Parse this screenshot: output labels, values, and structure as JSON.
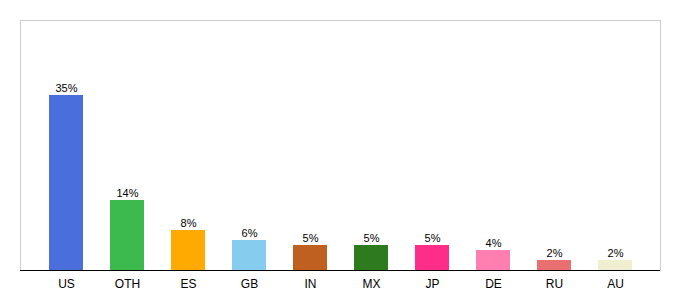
{
  "chart_data": {
    "type": "bar",
    "categories": [
      "US",
      "OTH",
      "ES",
      "GB",
      "IN",
      "MX",
      "JP",
      "DE",
      "RU",
      "AU"
    ],
    "values": [
      35,
      14,
      8,
      6,
      5,
      5,
      5,
      4,
      2,
      2
    ],
    "value_labels": [
      "35%",
      "14%",
      "8%",
      "6%",
      "5%",
      "5%",
      "5%",
      "4%",
      "2%",
      "2%"
    ],
    "colors": [
      "#4a6fdc",
      "#3dba4e",
      "#ffaa00",
      "#85ccee",
      "#c06020",
      "#2e7a1e",
      "#ff2d8a",
      "#ff80b0",
      "#e87070",
      "#f0f0d0"
    ],
    "ylim": [
      0,
      50
    ],
    "grid": false,
    "data_labels": true,
    "tick_labels": "x"
  }
}
